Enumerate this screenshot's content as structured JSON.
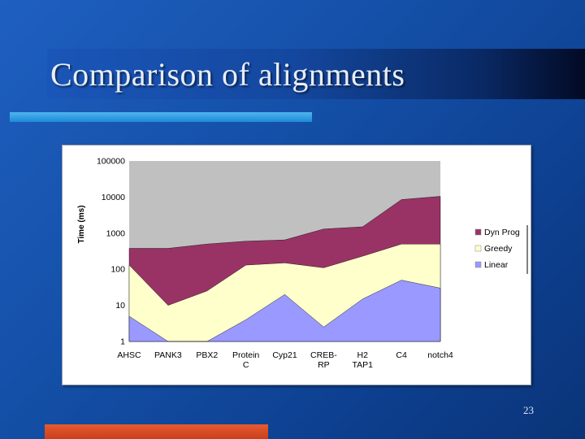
{
  "slide": {
    "title": "Comparison of alignments",
    "page_number": "23"
  },
  "colors": {
    "linear": "#9999ff",
    "greedy": "#ffffcc",
    "dynprog": "#993366",
    "plot_bg": "#c0c0c0"
  },
  "chart_data": {
    "type": "area",
    "stacked": true,
    "y_scale": "log",
    "ylim": [
      1,
      100000
    ],
    "ylabel": "Time (ms)",
    "xlabel": "",
    "title": "",
    "y_ticks": [
      "1",
      "10",
      "100",
      "1000",
      "10000",
      "100000"
    ],
    "categories": [
      [
        "AHSC"
      ],
      [
        "PANK3"
      ],
      [
        "PBX2"
      ],
      [
        "Protein",
        "C"
      ],
      [
        "Cyp21"
      ],
      [
        "CREB-",
        "RP"
      ],
      [
        "H2",
        "TAP1"
      ],
      [
        "C4"
      ],
      [
        "notch4"
      ]
    ],
    "series": [
      {
        "name": "Linear",
        "color": "#9999ff",
        "values": [
          5,
          1,
          1,
          4,
          20,
          2.5,
          15,
          50,
          30
        ]
      },
      {
        "name": "Greedy",
        "color": "#ffffcc",
        "values": [
          130,
          10,
          25,
          130,
          150,
          110,
          230,
          500,
          500
        ]
      },
      {
        "name": "Dyn Prog",
        "color": "#993366",
        "values": [
          380,
          380,
          500,
          600,
          650,
          1300,
          1500,
          8500,
          10500
        ]
      }
    ],
    "legend": {
      "position": "right",
      "entries": [
        "Dyn Prog",
        "Greedy",
        "Linear"
      ]
    },
    "grid": false
  }
}
